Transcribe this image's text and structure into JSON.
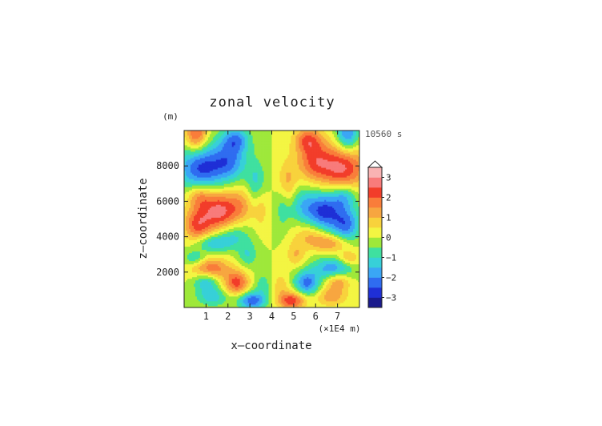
{
  "chart_data": {
    "type": "heatmap",
    "title": "zonal velocity",
    "xlabel": "x—coordinate",
    "ylabel": "z—coordinate",
    "x_unit": "(×1E4 m)",
    "y_unit": "(m)",
    "time_label": "10560 s",
    "xlim": [
      0,
      8
    ],
    "ylim": [
      0,
      10000
    ],
    "x_ticks": [
      {
        "value": 1,
        "label": "1"
      },
      {
        "value": 2,
        "label": "2"
      },
      {
        "value": 3,
        "label": "3"
      },
      {
        "value": 4,
        "label": "4"
      },
      {
        "value": 5,
        "label": "5"
      },
      {
        "value": 6,
        "label": "6"
      },
      {
        "value": 7,
        "label": "7"
      }
    ],
    "y_ticks": [
      {
        "value": 2000,
        "label": "2000"
      },
      {
        "value": 4000,
        "label": "4000"
      },
      {
        "value": 6000,
        "label": "6000"
      },
      {
        "value": 8000,
        "label": "8000"
      }
    ],
    "colorbar": {
      "levels": [
        -3.5,
        -3,
        -2.5,
        -2,
        -1.5,
        -1,
        -0.5,
        0,
        0.5,
        1,
        1.5,
        2,
        2.5,
        3,
        3.5
      ],
      "colors": [
        "#1a1a8c",
        "#1f2fd6",
        "#2f6cf0",
        "#3aa6f5",
        "#37d0d8",
        "#3fe0a0",
        "#9ee83a",
        "#f3f542",
        "#f8d23c",
        "#f7a640",
        "#f97d3a",
        "#f23d2a",
        "#f87b7b",
        "#f9b3b3"
      ],
      "tick_labels": [
        {
          "value": 3,
          "label": "3"
        },
        {
          "value": 2,
          "label": "2"
        },
        {
          "value": 1,
          "label": "1"
        },
        {
          "value": 0,
          "label": "0"
        },
        {
          "value": -1,
          "label": "−1"
        },
        {
          "value": -2,
          "label": "−2"
        },
        {
          "value": -3,
          "label": "−3"
        }
      ],
      "extend_max": true
    },
    "grid": false,
    "field_blobs": [
      {
        "x": 0.55,
        "z": 9800,
        "amp": 2.2,
        "sx": 0.35,
        "sz": 700
      },
      {
        "x": 7.45,
        "z": 9800,
        "amp": -2.2,
        "sx": 0.35,
        "sz": 700
      },
      {
        "x": 2.35,
        "z": 9500,
        "amp": -1.8,
        "sx": 0.45,
        "sz": 500
      },
      {
        "x": 5.65,
        "z": 9500,
        "amp": 1.8,
        "sx": 0.45,
        "sz": 500
      },
      {
        "x": 0.8,
        "z": 7900,
        "amp": -2.6,
        "sx": 0.75,
        "sz": 900
      },
      {
        "x": 7.2,
        "z": 7900,
        "amp": 2.6,
        "sx": 0.75,
        "sz": 900
      },
      {
        "x": 2.1,
        "z": 8300,
        "amp": -1.8,
        "sx": 0.55,
        "sz": 800
      },
      {
        "x": 5.9,
        "z": 8300,
        "amp": 1.8,
        "sx": 0.55,
        "sz": 800
      },
      {
        "x": 3.3,
        "z": 7000,
        "amp": -1.2,
        "sx": 0.3,
        "sz": 900
      },
      {
        "x": 4.7,
        "z": 7000,
        "amp": 1.2,
        "sx": 0.3,
        "sz": 900
      },
      {
        "x": 0.7,
        "z": 6300,
        "amp": 1.5,
        "sx": 0.4,
        "sz": 500
      },
      {
        "x": 7.3,
        "z": 6300,
        "amp": -1.5,
        "sx": 0.4,
        "sz": 500
      },
      {
        "x": 1.6,
        "z": 5450,
        "amp": 2.6,
        "sx": 0.55,
        "sz": 800
      },
      {
        "x": 6.4,
        "z": 5450,
        "amp": -2.6,
        "sx": 0.55,
        "sz": 800
      },
      {
        "x": 0.6,
        "z": 4700,
        "amp": 2.1,
        "sx": 0.45,
        "sz": 700
      },
      {
        "x": 7.4,
        "z": 4700,
        "amp": -2.1,
        "sx": 0.45,
        "sz": 700
      },
      {
        "x": 2.6,
        "z": 5800,
        "amp": 1.2,
        "sx": 0.45,
        "sz": 700
      },
      {
        "x": 5.4,
        "z": 5800,
        "amp": -1.2,
        "sx": 0.45,
        "sz": 700
      },
      {
        "x": 3.5,
        "z": 5700,
        "amp": 0.8,
        "sx": 0.25,
        "sz": 900
      },
      {
        "x": 4.5,
        "z": 5700,
        "amp": -0.8,
        "sx": 0.25,
        "sz": 900
      },
      {
        "x": 2.2,
        "z": 4100,
        "amp": -1.1,
        "sx": 0.55,
        "sz": 500
      },
      {
        "x": 5.8,
        "z": 4100,
        "amp": 1.1,
        "sx": 0.55,
        "sz": 500
      },
      {
        "x": 1.3,
        "z": 3650,
        "amp": -1.5,
        "sx": 0.6,
        "sz": 350
      },
      {
        "x": 6.7,
        "z": 3650,
        "amp": 1.5,
        "sx": 0.6,
        "sz": 350
      },
      {
        "x": 2.9,
        "z": 3000,
        "amp": -1.0,
        "sx": 0.3,
        "sz": 500
      },
      {
        "x": 5.1,
        "z": 3000,
        "amp": 1.0,
        "sx": 0.3,
        "sz": 500
      },
      {
        "x": 1.2,
        "z": 2200,
        "amp": 2.0,
        "sx": 0.6,
        "sz": 450
      },
      {
        "x": 6.8,
        "z": 2200,
        "amp": -2.0,
        "sx": 0.6,
        "sz": 450
      },
      {
        "x": 2.4,
        "z": 1400,
        "amp": 2.2,
        "sx": 0.4,
        "sz": 500
      },
      {
        "x": 5.6,
        "z": 1400,
        "amp": -2.2,
        "sx": 0.4,
        "sz": 500
      },
      {
        "x": 1.0,
        "z": 1500,
        "amp": -1.6,
        "sx": 0.4,
        "sz": 400
      },
      {
        "x": 7.0,
        "z": 1500,
        "amp": 1.6,
        "sx": 0.4,
        "sz": 400
      },
      {
        "x": 0.5,
        "z": 2800,
        "amp": -1.2,
        "sx": 0.35,
        "sz": 300
      },
      {
        "x": 7.5,
        "z": 2800,
        "amp": 1.2,
        "sx": 0.35,
        "sz": 300
      },
      {
        "x": 1.3,
        "z": 600,
        "amp": -1.3,
        "sx": 0.5,
        "sz": 350
      },
      {
        "x": 6.7,
        "z": 600,
        "amp": 1.3,
        "sx": 0.5,
        "sz": 350
      },
      {
        "x": 3.1,
        "z": 400,
        "amp": -2.4,
        "sx": 0.45,
        "sz": 350
      },
      {
        "x": 4.9,
        "z": 400,
        "amp": 2.4,
        "sx": 0.45,
        "sz": 350
      },
      {
        "x": 3.6,
        "z": 1300,
        "amp": -0.8,
        "sx": 0.3,
        "sz": 500
      },
      {
        "x": 4.4,
        "z": 1300,
        "amp": 0.8,
        "sx": 0.3,
        "sz": 500
      }
    ]
  }
}
